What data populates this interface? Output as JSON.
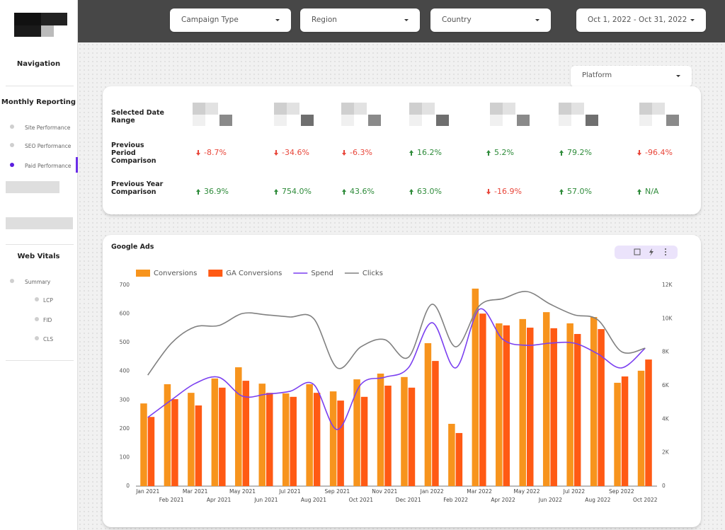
{
  "header": {
    "filters": [
      "Campaign Type",
      "Region",
      "Country",
      "Oct 1, 2022 - Oct 31, 2022"
    ]
  },
  "sidebar": {
    "title": "Navigation",
    "sections": [
      {
        "title": "Monthly Reporting",
        "items": [
          "Site Performance",
          "SEO Performance",
          "Paid Performance"
        ]
      },
      {
        "title": "Web Vitals",
        "items": [
          "Summary"
        ],
        "subitems": [
          "LCP",
          "FID",
          "CLS"
        ]
      }
    ]
  },
  "platform_filter": "Platform",
  "summary": {
    "row_labels": [
      "Selected Date Range",
      "Previous Period Comparison",
      "Previous Year Comparison"
    ],
    "previous_period": [
      {
        "text": "-8.7%",
        "trend": "down"
      },
      {
        "text": "-34.6%",
        "trend": "down"
      },
      {
        "text": "-6.3%",
        "trend": "down"
      },
      {
        "text": "16.2%",
        "trend": "up"
      },
      {
        "text": "5.2%",
        "trend": "up"
      },
      {
        "text": "79.2%",
        "trend": "up"
      },
      {
        "text": "-96.4%",
        "trend": "down"
      }
    ],
    "previous_year": [
      {
        "text": "36.9%",
        "trend": "up"
      },
      {
        "text": "754.0%",
        "trend": "up"
      },
      {
        "text": "43.6%",
        "trend": "up"
      },
      {
        "text": "63.0%",
        "trend": "up"
      },
      {
        "text": "-16.9%",
        "trend": "down"
      },
      {
        "text": "57.0%",
        "trend": "up"
      },
      {
        "text": "N/A",
        "trend": "up"
      }
    ]
  },
  "chart_data": {
    "type": "combo",
    "title": "Google Ads",
    "categories": [
      "Jan 2021",
      "Feb 2021",
      "Mar 2021",
      "Apr 2021",
      "May 2021",
      "Jun 2021",
      "Jul 2021",
      "Aug 2021",
      "Sep 2021",
      "Oct 2021",
      "Nov 2021",
      "Dec 2021",
      "Jan 2022",
      "Feb 2022",
      "Mar 2022",
      "Apr 2022",
      "May 2022",
      "Jun 2022",
      "Jul 2022",
      "Aug 2022",
      "Sep 2022",
      "Oct 2022"
    ],
    "series": [
      {
        "name": "Conversions",
        "type": "bar",
        "color": "#f7941d",
        "values": [
          288,
          355,
          325,
          375,
          414,
          357,
          323,
          355,
          330,
          372,
          392,
          380,
          498,
          217,
          688,
          567,
          582,
          606,
          567,
          589,
          360,
          402
        ]
      },
      {
        "name": "GA Conversions",
        "type": "bar",
        "color": "#ff5a14",
        "values": [
          241,
          303,
          281,
          343,
          367,
          325,
          311,
          325,
          298,
          311,
          350,
          343,
          436,
          185,
          601,
          560,
          552,
          550,
          530,
          547,
          382,
          441
        ]
      },
      {
        "name": "Spend",
        "type": "line",
        "axis": "y2",
        "color": "#7a3ff0",
        "values": [
          4100,
          5150,
          6130,
          6500,
          5370,
          5490,
          5660,
          6080,
          3380,
          6080,
          6500,
          7060,
          9760,
          7060,
          10560,
          8750,
          8410,
          8540,
          8540,
          7900,
          7060,
          8240
        ]
      },
      {
        "name": "Clicks",
        "type": "line",
        "axis": "y2",
        "color": "#808080",
        "values": [
          6630,
          8540,
          9510,
          9590,
          10310,
          10230,
          10100,
          10010,
          7060,
          8320,
          8750,
          7690,
          10860,
          8320,
          10770,
          11200,
          11620,
          10860,
          10230,
          9930,
          8030,
          8240
        ]
      }
    ],
    "ylim": [
      0,
      700
    ],
    "yticks": [
      0,
      100,
      200,
      300,
      400,
      500,
      600,
      700
    ],
    "y2lim": [
      0,
      12000
    ],
    "y2ticks": [
      0,
      {
        "value": 2000,
        "label": "2K"
      },
      {
        "value": 4000,
        "label": "4K"
      },
      {
        "value": 6000,
        "label": "6K"
      },
      {
        "value": 8000,
        "label": "8K"
      },
      {
        "value": 10000,
        "label": "10K"
      },
      {
        "value": 12000,
        "label": "12K"
      }
    ],
    "legend": "top-left",
    "grid": false
  }
}
